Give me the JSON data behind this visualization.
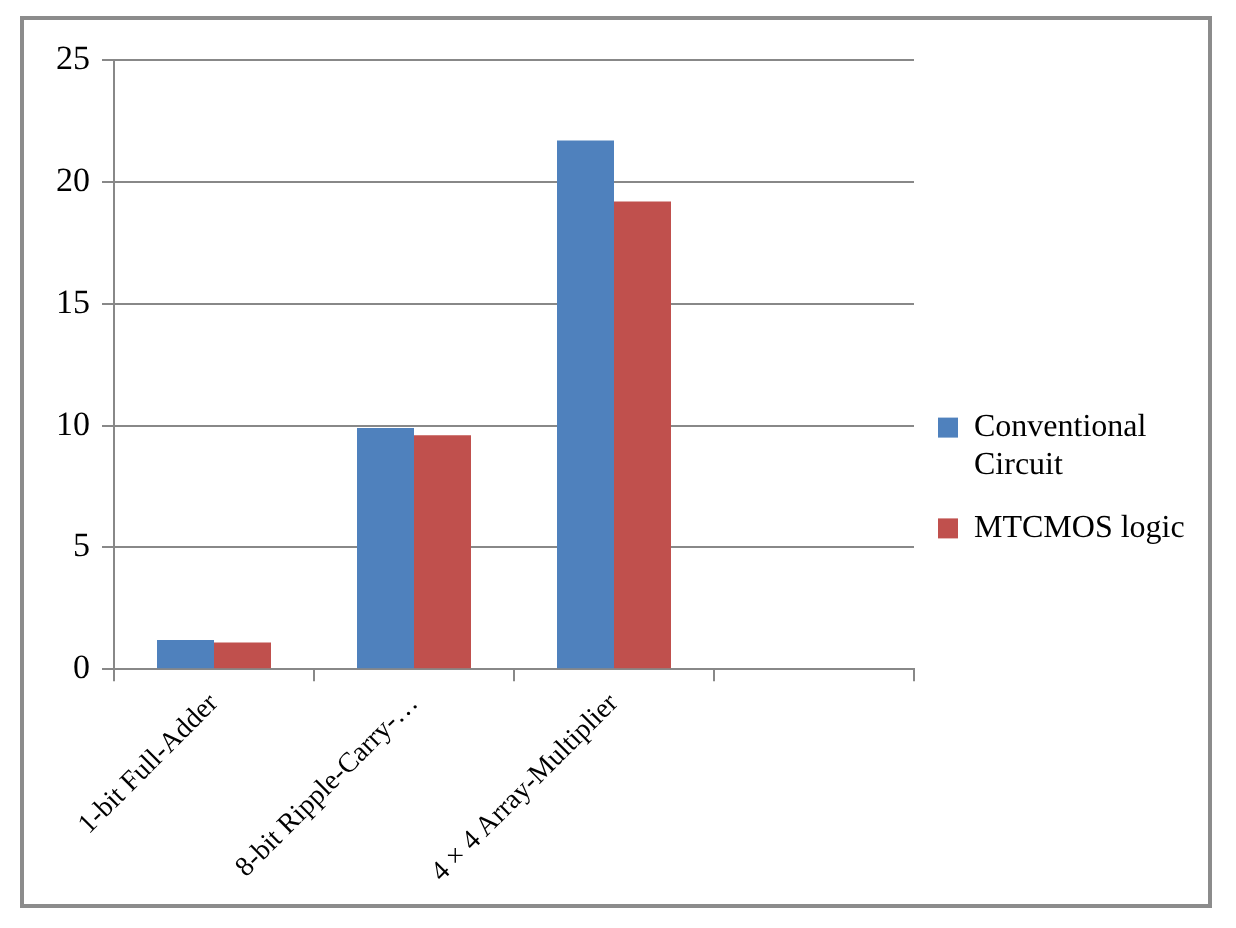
{
  "chart_data": {
    "type": "bar",
    "categories": [
      "1-bit Full-Adder",
      "8-bit Ripple-Carry-…",
      "4 × 4 Array-Multiplier",
      null
    ],
    "series": [
      {
        "name": "Conventional Circuit",
        "color": "#4f81bd",
        "values": [
          1.2,
          9.9,
          21.7,
          null
        ]
      },
      {
        "name": "MTCMOS logic",
        "color": "#c0504d",
        "values": [
          1.1,
          9.6,
          19.2,
          null
        ]
      }
    ],
    "ylim": [
      0,
      25
    ],
    "yticks": [
      0,
      5,
      10,
      15,
      20,
      25
    ],
    "grid": "y",
    "legend": "right"
  }
}
